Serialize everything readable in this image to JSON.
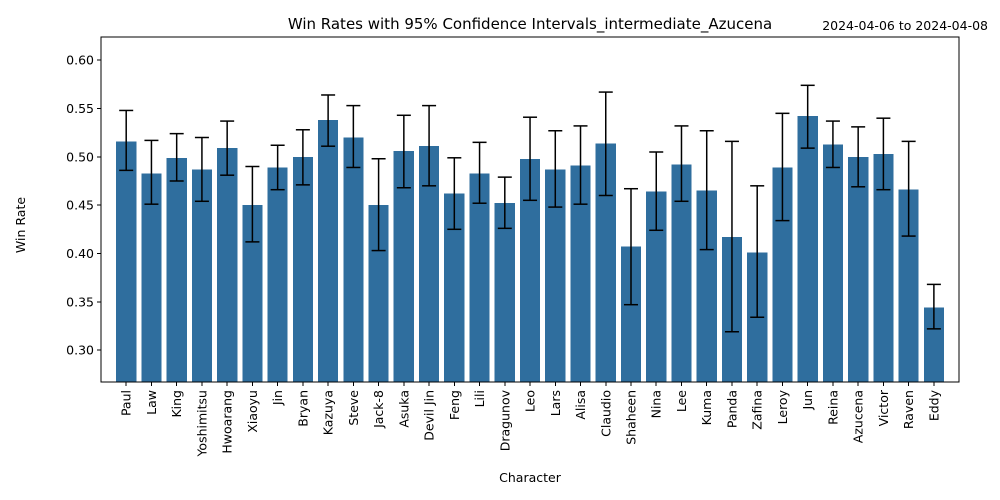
{
  "chart_data": {
    "type": "bar",
    "title": "Win Rates with 95% Confidence Intervals_intermediate_Azucena",
    "date_range": "2024-04-06 to 2024-04-08",
    "xlabel": "Character",
    "ylabel": "Win Rate",
    "ylim": [
      0.267,
      0.624
    ],
    "yticks": [
      "0.30",
      "0.35",
      "0.40",
      "0.45",
      "0.50",
      "0.55",
      "0.60"
    ],
    "grid": false,
    "bar_color": "#2f6e9e",
    "categories": [
      "Paul",
      "Law",
      "King",
      "Yoshimitsu",
      "Hwoarang",
      "Xiaoyu",
      "Jin",
      "Bryan",
      "Kazuya",
      "Steve",
      "Jack-8",
      "Asuka",
      "Devil Jin",
      "Feng",
      "Lili",
      "Dragunov",
      "Leo",
      "Lars",
      "Alisa",
      "Claudio",
      "Shaheen",
      "Nina",
      "Lee",
      "Kuma",
      "Panda",
      "Zafina",
      "Leroy",
      "Jun",
      "Reina",
      "Azucena",
      "Victor",
      "Raven",
      "Eddy"
    ],
    "values": [
      0.516,
      0.483,
      0.499,
      0.487,
      0.509,
      0.45,
      0.489,
      0.5,
      0.538,
      0.52,
      0.45,
      0.506,
      0.511,
      0.462,
      0.483,
      0.452,
      0.498,
      0.487,
      0.491,
      0.514,
      0.407,
      0.464,
      0.492,
      0.465,
      0.417,
      0.401,
      0.489,
      0.542,
      0.513,
      0.5,
      0.503,
      0.466,
      0.344
    ],
    "ci_lower": [
      0.486,
      0.451,
      0.475,
      0.454,
      0.481,
      0.412,
      0.466,
      0.471,
      0.511,
      0.489,
      0.403,
      0.468,
      0.47,
      0.425,
      0.452,
      0.426,
      0.455,
      0.448,
      0.451,
      0.46,
      0.347,
      0.424,
      0.454,
      0.404,
      0.319,
      0.334,
      0.434,
      0.509,
      0.489,
      0.469,
      0.466,
      0.418,
      0.322
    ],
    "ci_upper": [
      0.548,
      0.517,
      0.524,
      0.52,
      0.537,
      0.49,
      0.512,
      0.528,
      0.564,
      0.553,
      0.498,
      0.543,
      0.553,
      0.499,
      0.515,
      0.479,
      0.541,
      0.527,
      0.532,
      0.567,
      0.467,
      0.505,
      0.532,
      0.527,
      0.516,
      0.47,
      0.545,
      0.574,
      0.537,
      0.531,
      0.54,
      0.516,
      0.368
    ]
  }
}
